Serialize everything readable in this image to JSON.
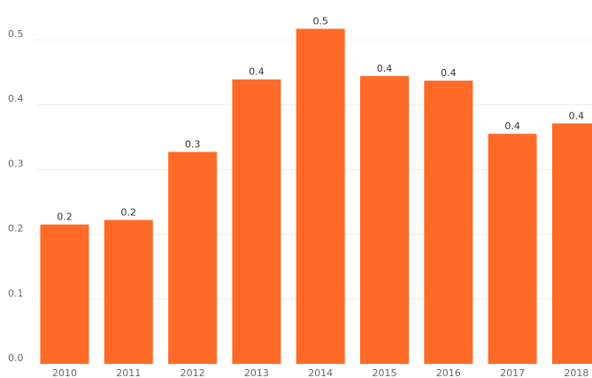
{
  "chart_data": {
    "type": "bar",
    "title": "",
    "xlabel": "",
    "ylabel": "",
    "categories": [
      "2010",
      "2011",
      "2012",
      "2013",
      "2014",
      "2015",
      "2016",
      "2017",
      "2018"
    ],
    "values": [
      0.215,
      0.222,
      0.327,
      0.439,
      0.517,
      0.444,
      0.437,
      0.355,
      0.371
    ],
    "data_labels": [
      "0.2",
      "0.2",
      "0.3",
      "0.4",
      "0.5",
      "0.4",
      "0.4",
      "0.4",
      "0.4"
    ],
    "yticks": [
      "0.0",
      "0.1",
      "0.2",
      "0.3",
      "0.4",
      "0.5"
    ],
    "ylim": [
      0,
      0.55
    ],
    "grid": true,
    "legend": "none",
    "bar_color": "#ff6a27"
  }
}
